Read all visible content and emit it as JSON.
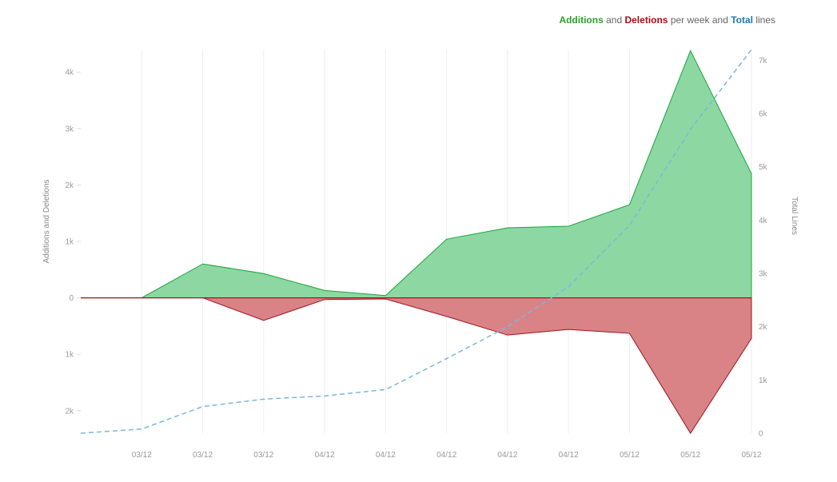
{
  "legend": {
    "additions": "Additions",
    "and": " and ",
    "deletions": "Deletions",
    "per_week_and": " per week and ",
    "total": "Total",
    "lines": " lines"
  },
  "colors": {
    "additions_text": "#2ca02c",
    "deletions_text": "#a50f15",
    "total_text": "#1f77b4",
    "additions_fill": "#8dd7a2",
    "additions_stroke": "#1aa53a",
    "deletions_fill": "#d98387",
    "deletions_stroke": "#a1121c",
    "total_line": "#7ab8de",
    "grid": "#eeeeee"
  },
  "chart_data": {
    "type": "area",
    "x": [
      "",
      "03/12",
      "03/12",
      "03/12",
      "04/12",
      "04/12",
      "04/12",
      "04/12",
      "04/12",
      "05/12",
      "05/12",
      "05/12"
    ],
    "series": [
      {
        "name": "Additions",
        "axis": "left",
        "values": [
          0,
          0,
          600,
          430,
          130,
          40,
          1040,
          1240,
          1270,
          1650,
          4380,
          2200
        ]
      },
      {
        "name": "Deletions",
        "axis": "left",
        "values": [
          0,
          0,
          0,
          400,
          30,
          20,
          330,
          660,
          560,
          630,
          2400,
          720
        ]
      },
      {
        "name": "Total",
        "axis": "right",
        "values": [
          0,
          80,
          500,
          640,
          700,
          820,
          1400,
          2000,
          2750,
          3900,
          5700,
          7200
        ]
      }
    ],
    "xlabel": "",
    "ylabel": "Additions and Deletions",
    "y2label": "Total Lines",
    "ylim": [
      -2400,
      4400
    ],
    "y2lim": [
      0,
      7200
    ],
    "yticks": [
      {
        "value": 4000,
        "label": "4k"
      },
      {
        "value": 3000,
        "label": "3k"
      },
      {
        "value": 2000,
        "label": "2k"
      },
      {
        "value": 1000,
        "label": "1k"
      },
      {
        "value": 0,
        "label": "0"
      },
      {
        "value": -1000,
        "label": "1k"
      },
      {
        "value": -2000,
        "label": "2k"
      }
    ],
    "y2ticks": [
      {
        "value": 7000,
        "label": "7k"
      },
      {
        "value": 6000,
        "label": "6k"
      },
      {
        "value": 5000,
        "label": "5k"
      },
      {
        "value": 4000,
        "label": "4k"
      },
      {
        "value": 3000,
        "label": "3k"
      },
      {
        "value": 2000,
        "label": "2k"
      },
      {
        "value": 1000,
        "label": "1k"
      },
      {
        "value": 0,
        "label": "0"
      }
    ],
    "grid": true,
    "legend_position": "top-right"
  }
}
